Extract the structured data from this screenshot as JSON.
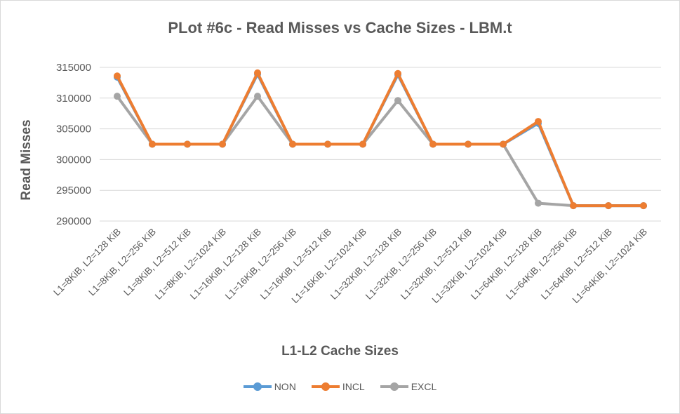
{
  "chart_data": {
    "type": "line",
    "title": "PLot #6c - Read Misses vs Cache Sizes - LBM.t",
    "xlabel": "L1-L2 Cache Sizes",
    "ylabel": "Read Misses",
    "ylim": [
      290000,
      315000
    ],
    "yticks": [
      "290000",
      "295000",
      "300000",
      "305000",
      "310000",
      "315000"
    ],
    "ytick_values": [
      290000,
      295000,
      300000,
      305000,
      310000,
      315000
    ],
    "grid": true,
    "legend_position": "bottom",
    "categories": [
      "L1=8KiB, L2=128 KiB",
      "L1=8KiB, L2=256 KiB",
      "L1=8KiB, L2=512 KiB",
      "L1=8KiB, L2=1024 KiB",
      "L1=16KiB, L2=128 KiB",
      "L1=16KiB, L2=256 KiB",
      "L1=16KiB, L2=512 KiB",
      "L1=16KiB, L2=1024 KiB",
      "L1=32KiB, L2=128 KiB",
      "L1=32KiB, L2=256 KiB",
      "L1=32KiB, L2=512 KiB",
      "L1=32KiB, L2=1024 KiB",
      "L1=64KiB, L2=128 KiB",
      "L1=64KiB, L2=256 KiB",
      "L1=64KiB, L2=512 KiB",
      "L1=64KiB, L2=1024 KiB"
    ],
    "series": [
      {
        "name": "NON",
        "color": "#5b9bd5",
        "values": [
          313400,
          302500,
          302500,
          302500,
          313900,
          302500,
          302500,
          302500,
          313800,
          302500,
          302500,
          302500,
          305900,
          292500,
          292500,
          292500
        ]
      },
      {
        "name": "INCL",
        "color": "#ed7d31",
        "values": [
          313600,
          302500,
          302500,
          302500,
          314100,
          302500,
          302500,
          302500,
          314000,
          302500,
          302500,
          302500,
          306200,
          292500,
          292500,
          292500
        ]
      },
      {
        "name": "EXCL",
        "color": "#a5a5a5",
        "values": [
          310300,
          302500,
          302500,
          302500,
          310300,
          302500,
          302500,
          302500,
          309600,
          302500,
          302500,
          302500,
          292900,
          292500,
          292500,
          292500
        ]
      }
    ]
  }
}
